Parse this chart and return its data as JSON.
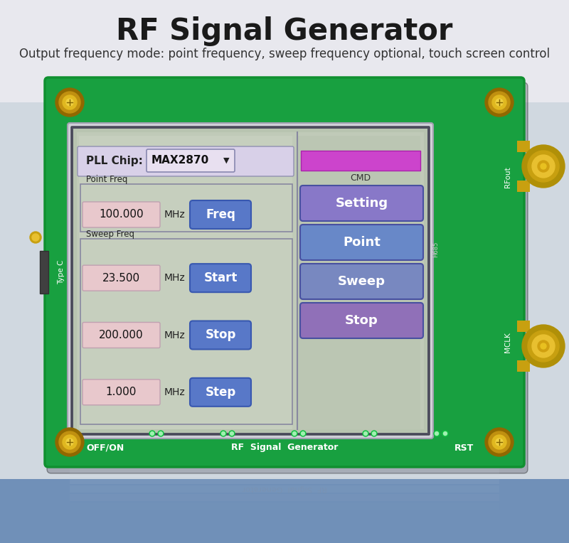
{
  "title": "RF Signal Generator",
  "subtitle": "Output frequency mode: point frequency, sweep frequency optional, touch screen control",
  "title_fontsize": 30,
  "subtitle_fontsize": 12,
  "bg_top_color": "#e8e8ee",
  "bg_bottom_color": "#6090c0",
  "board_color": "#18a040",
  "board_edge_color": "#109030",
  "screen_bg": "#b0b8cc",
  "screen_content_bg": "#c0c8b8",
  "pll_label": "PLL Chip:",
  "pll_value": "MAX2870",
  "pink_bar_color": "#cc44cc",
  "cmd_label": "CMD",
  "point_freq_label": "Point Freq",
  "sweep_freq_label": "Sweep Freq",
  "freq_value": "100.000",
  "start_value": "23.500",
  "stop_value": "200.000",
  "step_value": "1.000",
  "mhz_label": "MHz",
  "btn_freq": "Freq",
  "btn_start": "Start",
  "btn_stop_sweep": "Stop",
  "btn_step": "Step",
  "right_btn_setting": "Setting",
  "right_btn_point": "Point",
  "right_btn_sweep": "Sweep",
  "right_btn_stop": "Stop",
  "bottom_left": "OFF/ON",
  "bottom_center": "RF  Signal  Generator",
  "bottom_right": "RST",
  "rfout_label": "RFout",
  "mclk_label": "MCLK",
  "typec_label": "Type C",
  "h685_label": "H685",
  "input_bg": "#e8c8cc",
  "left_btn_color": "#5878c8",
  "right_btn_color_setting": "#8878c8",
  "right_btn_color_point": "#6888c0",
  "right_btn_color_sweep": "#7888c0",
  "right_btn_color_stop": "#8870b8",
  "screw_outer": "#c09010",
  "screw_inner": "#e0b820",
  "screw_center": "#f0d040",
  "connector_color": "#c8a010",
  "connector_inner": "#e8c030",
  "pll_box_bg": "#e0d8f0",
  "group_border": "#8888a0"
}
